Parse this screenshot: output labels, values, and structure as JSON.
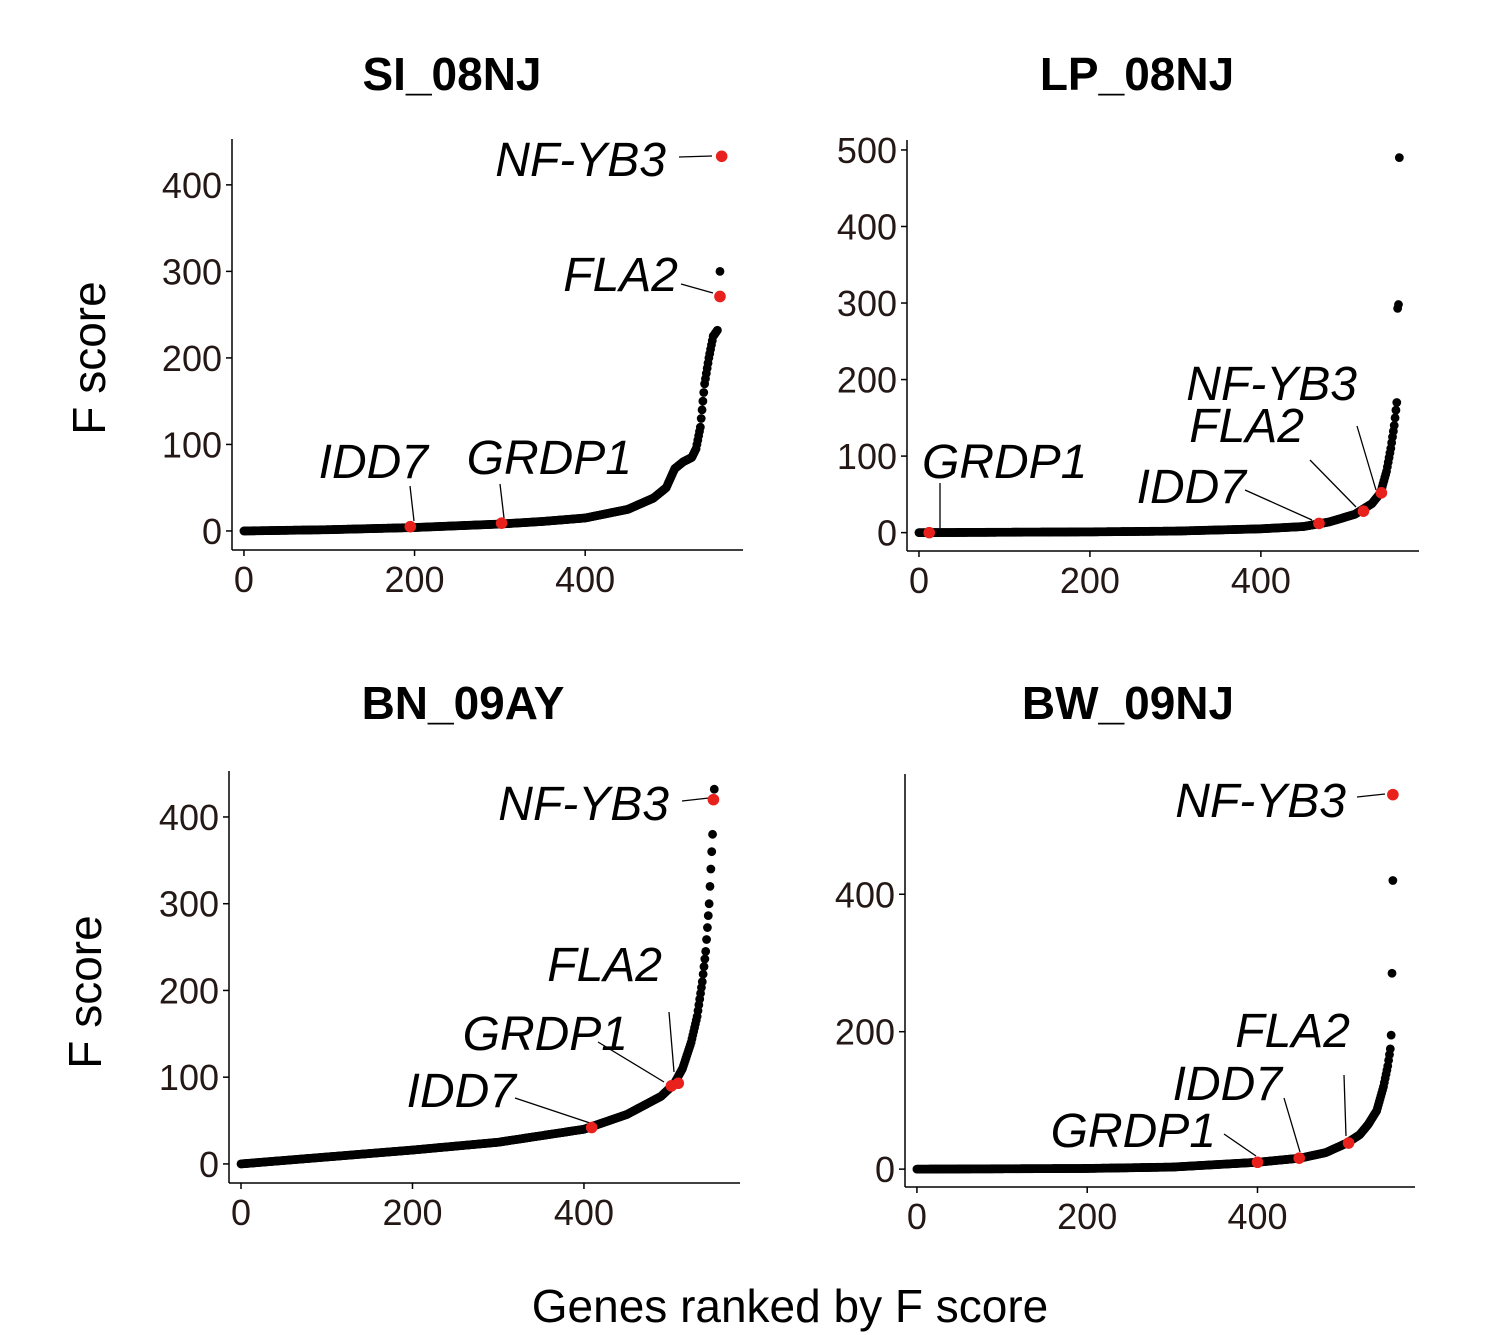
{
  "figure": {
    "ylabel": "F score",
    "xlabel": "Genes ranked by F score"
  },
  "colors": {
    "points": "#000000",
    "highlight": "#e8211d",
    "tick_text": "#231815"
  },
  "chart_data": [
    {
      "type": "scatter",
      "title": "SI_08NJ",
      "xlabel": "Genes ranked by F score",
      "ylabel": "F score",
      "xlim": [
        -14,
        585
      ],
      "ylim": [
        -22,
        453
      ],
      "xticks": [
        0,
        200,
        400
      ],
      "yticks": [
        0,
        100,
        200,
        300,
        400
      ],
      "n_genes": 561,
      "curve": [
        [
          0,
          0
        ],
        [
          100,
          1.5
        ],
        [
          200,
          4
        ],
        [
          300,
          8
        ],
        [
          350,
          11
        ],
        [
          400,
          15
        ],
        [
          450,
          25
        ],
        [
          480,
          38
        ],
        [
          495,
          50
        ],
        [
          505,
          72
        ],
        [
          515,
          80
        ],
        [
          525,
          85
        ],
        [
          530,
          95
        ],
        [
          535,
          120
        ],
        [
          538,
          150
        ],
        [
          540,
          170
        ],
        [
          545,
          200
        ],
        [
          550,
          225
        ],
        [
          555,
          232
        ]
      ],
      "top_points": [
        [
          558,
          300
        ]
      ],
      "highlights": [
        {
          "gene": "NF-YB3",
          "x": 560,
          "y": 433
        },
        {
          "gene": "FLA2",
          "x": 558,
          "y": 271
        },
        {
          "gene": "IDD7",
          "x": 195,
          "y": 5
        },
        {
          "gene": "GRDP1",
          "x": 302,
          "y": 9
        }
      ]
    },
    {
      "type": "scatter",
      "title": "LP_08NJ",
      "xlabel": "Genes ranked by F score",
      "ylabel": "F score",
      "xlim": [
        -14,
        585
      ],
      "ylim": [
        -24,
        513
      ],
      "xticks": [
        0,
        200,
        400
      ],
      "yticks": [
        0,
        100,
        200,
        300,
        400,
        500
      ],
      "n_genes": 563,
      "curve": [
        [
          0,
          0
        ],
        [
          100,
          0.5
        ],
        [
          200,
          1
        ],
        [
          300,
          2
        ],
        [
          400,
          5
        ],
        [
          450,
          8
        ],
        [
          480,
          14
        ],
        [
          510,
          24
        ],
        [
          530,
          38
        ],
        [
          540,
          52
        ],
        [
          547,
          80
        ],
        [
          552,
          110
        ],
        [
          556,
          140
        ],
        [
          559,
          170
        ]
      ],
      "top_points": [
        [
          560,
          293
        ],
        [
          561,
          298
        ],
        [
          562,
          490
        ]
      ],
      "highlights": [
        {
          "gene": "GRDP1",
          "x": 12,
          "y": 0
        },
        {
          "gene": "IDD7",
          "x": 468,
          "y": 12
        },
        {
          "gene": "FLA2",
          "x": 520,
          "y": 28
        },
        {
          "gene": "NF-YB3",
          "x": 541,
          "y": 52
        }
      ]
    },
    {
      "type": "scatter",
      "title": "BN_09AY",
      "xlabel": "Genes ranked by F score",
      "ylabel": "F score",
      "xlim": [
        -14,
        582
      ],
      "ylim": [
        -22,
        453
      ],
      "xticks": [
        0,
        200,
        400
      ],
      "yticks": [
        0,
        100,
        200,
        300,
        400
      ],
      "n_genes": 552,
      "curve": [
        [
          0,
          0
        ],
        [
          100,
          8
        ],
        [
          200,
          16
        ],
        [
          300,
          25
        ],
        [
          400,
          40
        ],
        [
          450,
          57
        ],
        [
          490,
          78
        ],
        [
          505,
          92
        ],
        [
          515,
          110
        ],
        [
          525,
          140
        ],
        [
          532,
          170
        ],
        [
          538,
          210
        ],
        [
          542,
          245
        ],
        [
          546,
          300
        ],
        [
          548,
          340
        ],
        [
          550,
          380
        ],
        [
          551,
          420
        ]
      ],
      "top_points": [
        [
          552,
          432
        ]
      ],
      "highlights": [
        {
          "gene": "NF-YB3",
          "x": 551,
          "y": 420
        },
        {
          "gene": "FLA2",
          "x": 510,
          "y": 93
        },
        {
          "gene": "GRDP1",
          "x": 502,
          "y": 90
        },
        {
          "gene": "IDD7",
          "x": 409,
          "y": 42
        }
      ]
    },
    {
      "type": "scatter",
      "title": "BW_09NJ",
      "xlabel": "Genes ranked by F score",
      "ylabel": "F score",
      "xlim": [
        -14,
        585
      ],
      "ylim": [
        -26,
        575
      ],
      "xticks": [
        0,
        200,
        400
      ],
      "yticks": [
        0,
        200,
        400
      ],
      "n_genes": 560,
      "curve": [
        [
          0,
          0
        ],
        [
          200,
          1
        ],
        [
          300,
          3
        ],
        [
          400,
          10
        ],
        [
          450,
          16
        ],
        [
          480,
          24
        ],
        [
          505,
          38
        ],
        [
          520,
          50
        ],
        [
          530,
          65
        ],
        [
          540,
          85
        ],
        [
          548,
          120
        ],
        [
          553,
          150
        ],
        [
          556,
          175
        ]
      ],
      "top_points": [
        [
          557,
          195
        ],
        [
          558,
          285
        ],
        [
          559,
          420
        ]
      ],
      "highlights": [
        {
          "gene": "NF-YB3",
          "x": 559,
          "y": 545
        },
        {
          "gene": "GRDP1",
          "x": 400,
          "y": 10
        },
        {
          "gene": "IDD7",
          "x": 449,
          "y": 16
        },
        {
          "gene": "FLA2",
          "x": 507,
          "y": 38
        }
      ]
    }
  ]
}
